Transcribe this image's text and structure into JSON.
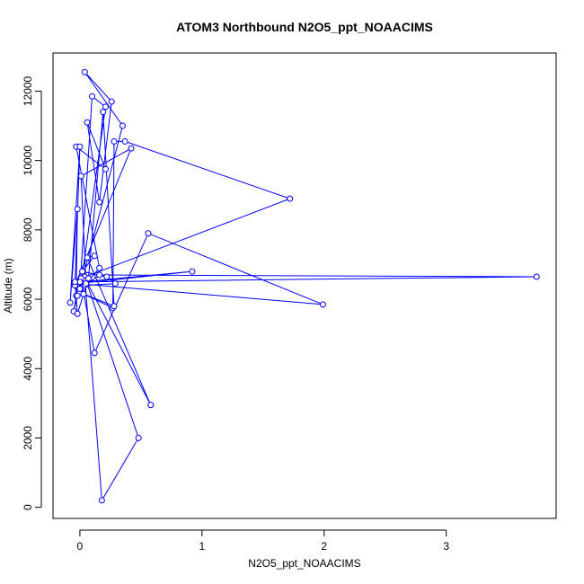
{
  "chart_data": {
    "type": "line",
    "title": "ATOM3 Northbound N2O5_ppt_NOAACIMS",
    "xlabel": "N2O5_ppt_NOAACIMS",
    "ylabel": "Altitude (m)",
    "xlim": [
      -0.22,
      3.9
    ],
    "ylim": [
      -320,
      13100
    ],
    "xticks": [
      0,
      1,
      2,
      3
    ],
    "xtick_labels": [
      "0",
      "1",
      "2",
      "3"
    ],
    "yticks": [
      0,
      2000,
      4000,
      6000,
      8000,
      10000,
      12000
    ],
    "ytick_labels": [
      "0",
      "2000",
      "4000",
      "6000",
      "8000",
      "10000",
      "12000"
    ],
    "grid": false,
    "line_color": "#0000ff",
    "marker": "open-circle",
    "series": [
      {
        "x": [
          0.04,
          0.18,
          0.48,
          0.05,
          0.58,
          0.06,
          0.12,
          0.02,
          0.22,
          0.29,
          0.04,
          0.16,
          3.74,
          0.01,
          0.92,
          -0.02,
          1.99,
          0.56,
          0.12,
          0.01,
          1.72,
          0.37,
          0.28,
          0.27,
          0.0,
          0.21,
          0.1,
          0.0,
          0.35,
          0.04,
          0.26,
          0.16,
          0.06,
          0.21,
          -0.03,
          0.16,
          0.05,
          0.01,
          0.42,
          -0.04,
          0.0,
          -0.08,
          -0.02,
          -0.03,
          -0.05,
          -0.02,
          0.0,
          -0.04,
          -0.02,
          0.07,
          0.19,
          0.28,
          0.03
        ],
        "y": [
          6650,
          200,
          2000,
          6550,
          2950,
          7200,
          7250,
          6800,
          6650,
          6450,
          6400,
          6700,
          6650,
          6500,
          6800,
          6450,
          5850,
          7900,
          4450,
          6600,
          8900,
          10550,
          10550,
          5750,
          6200,
          11550,
          11850,
          6300,
          11000,
          12550,
          11700,
          8800,
          11100,
          9750,
          10400,
          6900,
          6450,
          9550,
          10350,
          6400,
          10400,
          5900,
          8600,
          6100,
          5650,
          6100,
          6500,
          6500,
          5580,
          6600,
          11400,
          5800,
          6150
        ]
      }
    ]
  }
}
